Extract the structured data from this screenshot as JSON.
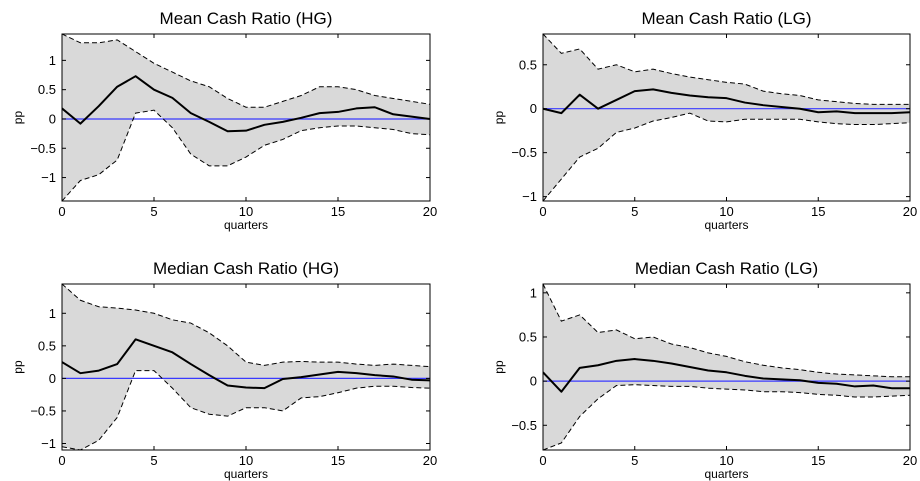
{
  "chart_data": [
    {
      "type": "line",
      "title": "Mean Cash Ratio (HG)",
      "xlabel": "quarters",
      "ylabel": "pp",
      "xlim": [
        0,
        20
      ],
      "ylim": [
        -1.4,
        1.45
      ],
      "xticks": [
        0,
        5,
        10,
        15,
        20
      ],
      "yticks": [
        -1,
        -0.5,
        0,
        0.5,
        1
      ],
      "x": [
        0,
        1,
        2,
        3,
        4,
        5,
        6,
        7,
        8,
        9,
        10,
        11,
        12,
        13,
        14,
        15,
        16,
        17,
        18,
        19,
        20
      ],
      "series": [
        {
          "role": "lower",
          "values": [
            -1.4,
            -1.05,
            -0.95,
            -0.7,
            0.1,
            0.15,
            -0.15,
            -0.6,
            -0.8,
            -0.8,
            -0.65,
            -0.45,
            -0.35,
            -0.2,
            -0.15,
            -0.12,
            -0.12,
            -0.15,
            -0.18,
            -0.25,
            -0.27
          ]
        },
        {
          "role": "estimate",
          "values": [
            0.18,
            -0.08,
            0.22,
            0.55,
            0.73,
            0.5,
            0.36,
            0.1,
            -0.05,
            -0.21,
            -0.2,
            -0.1,
            -0.05,
            0.02,
            0.1,
            0.12,
            0.18,
            0.2,
            0.08,
            0.04,
            0.0
          ]
        },
        {
          "role": "upper",
          "values": [
            1.45,
            1.3,
            1.3,
            1.35,
            1.15,
            0.95,
            0.8,
            0.65,
            0.55,
            0.35,
            0.2,
            0.2,
            0.3,
            0.4,
            0.55,
            0.55,
            0.5,
            0.4,
            0.35,
            0.3,
            0.25
          ]
        }
      ],
      "zero_line": 0
    },
    {
      "type": "line",
      "title": "Mean Cash Ratio (LG)",
      "xlabel": "quarters",
      "ylabel": "pp",
      "xlim": [
        0,
        20
      ],
      "ylim": [
        -1.05,
        0.85
      ],
      "xticks": [
        0,
        5,
        10,
        15,
        20
      ],
      "yticks": [
        -1,
        -0.5,
        0,
        0.5
      ],
      "x": [
        0,
        1,
        2,
        3,
        4,
        5,
        6,
        7,
        8,
        9,
        10,
        11,
        12,
        13,
        14,
        15,
        16,
        17,
        18,
        19,
        20
      ],
      "series": [
        {
          "role": "lower",
          "values": [
            -1.05,
            -0.8,
            -0.55,
            -0.45,
            -0.27,
            -0.22,
            -0.14,
            -0.1,
            -0.05,
            -0.14,
            -0.15,
            -0.12,
            -0.12,
            -0.12,
            -0.12,
            -0.15,
            -0.17,
            -0.18,
            -0.18,
            -0.17,
            -0.16
          ]
        },
        {
          "role": "estimate",
          "values": [
            0.0,
            -0.05,
            0.16,
            0.0,
            0.1,
            0.2,
            0.22,
            0.18,
            0.15,
            0.13,
            0.12,
            0.07,
            0.04,
            0.02,
            0.0,
            -0.04,
            -0.03,
            -0.05,
            -0.05,
            -0.05,
            -0.04
          ]
        },
        {
          "role": "upper",
          "values": [
            0.85,
            0.63,
            0.68,
            0.45,
            0.5,
            0.42,
            0.45,
            0.4,
            0.36,
            0.33,
            0.3,
            0.28,
            0.2,
            0.17,
            0.15,
            0.1,
            0.08,
            0.06,
            0.05,
            0.05,
            0.05
          ]
        }
      ],
      "zero_line": 0
    },
    {
      "type": "line",
      "title": "Median Cash Ratio (HG)",
      "xlabel": "quarters",
      "ylabel": "pp",
      "xlim": [
        0,
        20
      ],
      "ylim": [
        -1.1,
        1.45
      ],
      "xticks": [
        0,
        5,
        10,
        15,
        20
      ],
      "yticks": [
        -1,
        -0.5,
        0,
        0.5,
        1
      ],
      "x": [
        0,
        1,
        2,
        3,
        4,
        5,
        6,
        7,
        8,
        9,
        10,
        11,
        12,
        13,
        14,
        15,
        16,
        17,
        18,
        19,
        20
      ],
      "series": [
        {
          "role": "lower",
          "values": [
            -1.05,
            -1.1,
            -0.95,
            -0.6,
            0.12,
            0.12,
            -0.15,
            -0.45,
            -0.55,
            -0.58,
            -0.45,
            -0.45,
            -0.5,
            -0.3,
            -0.28,
            -0.22,
            -0.15,
            -0.12,
            -0.12,
            -0.14,
            -0.15
          ]
        },
        {
          "role": "estimate",
          "values": [
            0.25,
            0.08,
            0.12,
            0.22,
            0.6,
            0.5,
            0.4,
            0.22,
            0.05,
            -0.11,
            -0.14,
            -0.15,
            -0.01,
            0.02,
            0.06,
            0.1,
            0.08,
            0.05,
            0.03,
            -0.02,
            -0.03
          ]
        },
        {
          "role": "upper",
          "values": [
            1.45,
            1.2,
            1.1,
            1.08,
            1.05,
            1.0,
            0.9,
            0.85,
            0.7,
            0.5,
            0.25,
            0.2,
            0.25,
            0.26,
            0.25,
            0.25,
            0.22,
            0.2,
            0.22,
            0.2,
            0.18
          ]
        }
      ],
      "zero_line": 0
    },
    {
      "type": "line",
      "title": "Median Cash Ratio (LG)",
      "xlabel": "quarters",
      "ylabel": "pp",
      "xlim": [
        0,
        20
      ],
      "ylim": [
        -0.78,
        1.1
      ],
      "xticks": [
        0,
        5,
        10,
        15,
        20
      ],
      "yticks": [
        -0.5,
        0,
        0.5,
        1
      ],
      "x": [
        0,
        1,
        2,
        3,
        4,
        5,
        6,
        7,
        8,
        9,
        10,
        11,
        12,
        13,
        14,
        15,
        16,
        17,
        18,
        19,
        20
      ],
      "series": [
        {
          "role": "lower",
          "values": [
            -0.78,
            -0.7,
            -0.4,
            -0.2,
            -0.05,
            -0.04,
            -0.05,
            -0.06,
            -0.06,
            -0.08,
            -0.09,
            -0.1,
            -0.12,
            -0.12,
            -0.13,
            -0.15,
            -0.16,
            -0.18,
            -0.18,
            -0.17,
            -0.16
          ]
        },
        {
          "role": "estimate",
          "values": [
            0.1,
            -0.12,
            0.15,
            0.18,
            0.23,
            0.25,
            0.23,
            0.2,
            0.16,
            0.12,
            0.1,
            0.06,
            0.03,
            0.02,
            0.01,
            -0.02,
            -0.03,
            -0.06,
            -0.05,
            -0.08,
            -0.08
          ]
        },
        {
          "role": "upper",
          "values": [
            1.1,
            0.68,
            0.75,
            0.55,
            0.58,
            0.48,
            0.5,
            0.42,
            0.38,
            0.32,
            0.28,
            0.22,
            0.18,
            0.15,
            0.13,
            0.1,
            0.08,
            0.07,
            0.06,
            0.05,
            0.05
          ]
        }
      ],
      "zero_line": 0
    }
  ],
  "colors": {
    "band_fill": "#d9d9d9",
    "estimate_line": "#000000",
    "bound_line": "#000000",
    "zero_line": "#3a3aff",
    "axes": "#000000"
  }
}
